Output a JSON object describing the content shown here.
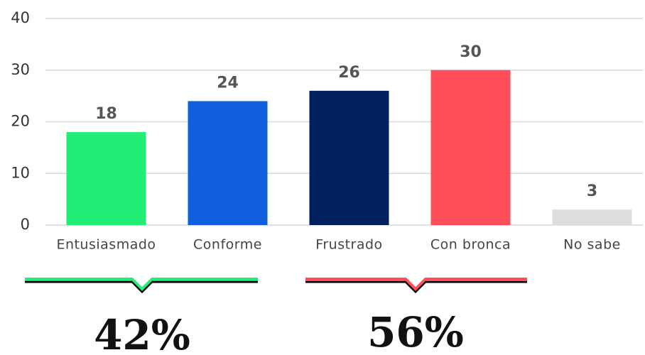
{
  "chart_data": {
    "type": "bar",
    "categories": [
      "Entusiasmado",
      "Conforme",
      "Frustrado",
      "Con bronca",
      "No sabe"
    ],
    "values": [
      18,
      24,
      26,
      30,
      3
    ],
    "colors": [
      "#22ee77",
      "#1060dd",
      "#002060",
      "#ff4d5a",
      "#dddddd"
    ],
    "ylim": [
      0,
      40
    ],
    "yticks": [
      0,
      10,
      20,
      30,
      40
    ],
    "grid": true,
    "annotations": [
      "42%",
      "56%"
    ]
  }
}
